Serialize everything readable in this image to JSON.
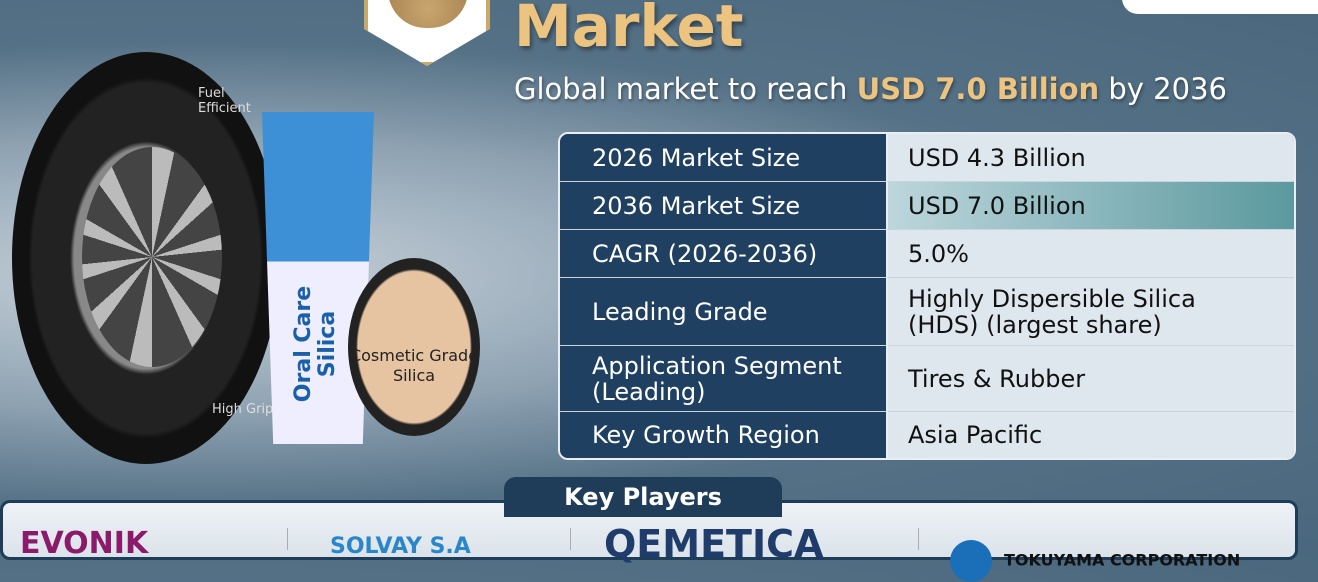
{
  "header": {
    "title": "Market",
    "subtitle_prefix": "Global market to reach ",
    "subtitle_highlight": "USD 7.0 Billion",
    "subtitle_suffix": " by 2036"
  },
  "products": {
    "tire_top": "Fuel Efficient",
    "tire_bottom": "High Grip",
    "tube": "Oral Care Silica",
    "compact": "Cosmetic Grade Silica"
  },
  "table": [
    {
      "label": "2026 Market Size",
      "value": "USD 4.3 Billion"
    },
    {
      "label": "2036 Market Size",
      "value": "USD 7.0 Billion"
    },
    {
      "label": "CAGR (2026-2036)",
      "value": "5.0%"
    },
    {
      "label": "Leading Grade",
      "value": "Highly Dispersible Silica (HDS) (largest share)"
    },
    {
      "label": "Application Segment (Leading)",
      "value": "Tires & Rubber"
    },
    {
      "label": "Key Growth Region",
      "value": "Asia Pacific"
    }
  ],
  "key_players": {
    "title": "Key Players",
    "logos": [
      "EVONIK",
      "SOLVAY S.A",
      "QEMETICA",
      "TOKUYAMA CORPORATION"
    ]
  },
  "colors": {
    "accent": "#ecc47f",
    "navy": "#1f4060",
    "background": "#4a677d"
  }
}
